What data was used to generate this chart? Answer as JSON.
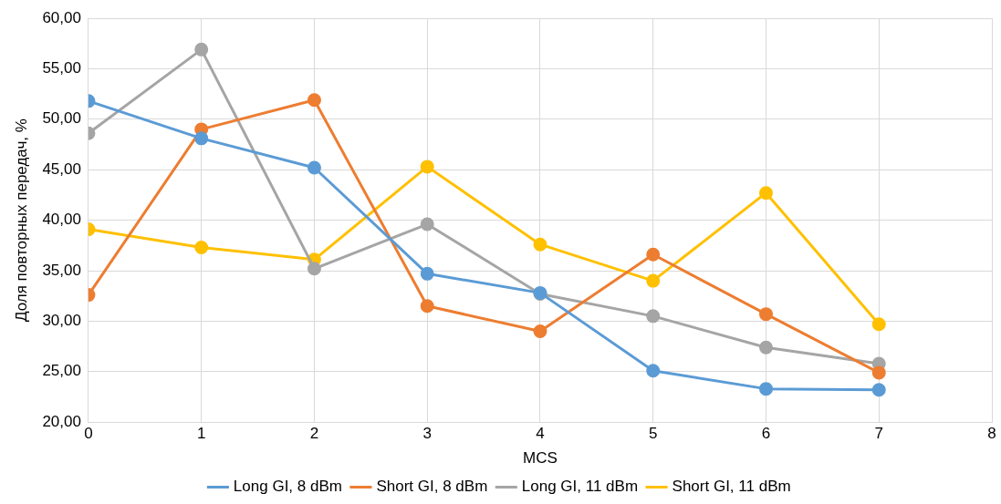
{
  "chart_data": {
    "type": "line",
    "xlabel": "MCS",
    "ylabel": "Доля повторных передач, %",
    "x": [
      0,
      1,
      2,
      3,
      4,
      5,
      6,
      7
    ],
    "xlim": [
      0,
      8
    ],
    "xticks": [
      0,
      1,
      2,
      3,
      4,
      5,
      6,
      7,
      8
    ],
    "ylim": [
      20,
      60
    ],
    "yticks": [
      {
        "value": 20,
        "label": "20,00"
      },
      {
        "value": 25,
        "label": "25,00"
      },
      {
        "value": 30,
        "label": "30,00"
      },
      {
        "value": 35,
        "label": "35,00"
      },
      {
        "value": 40,
        "label": "40,00"
      },
      {
        "value": 45,
        "label": "45,00"
      },
      {
        "value": 50,
        "label": "50,00"
      },
      {
        "value": 55,
        "label": "55,00"
      },
      {
        "value": 60,
        "label": "60,00"
      }
    ],
    "grid": true,
    "legend": "bottom",
    "marker": "circle",
    "line_style": "solid",
    "series": [
      {
        "name": "Long GI, 8 dBm",
        "color": "#5b9bd5",
        "values": [
          51.8,
          48.1,
          45.2,
          34.7,
          32.8,
          25.1,
          23.3,
          23.2
        ]
      },
      {
        "name": "Short GI, 8 dBm",
        "color": "#ed7d31",
        "values": [
          32.6,
          49.0,
          51.9,
          31.5,
          29.0,
          36.6,
          30.7,
          24.9
        ]
      },
      {
        "name": "Long GI, 11 dBm",
        "color": "#a5a5a5",
        "values": [
          48.6,
          56.9,
          35.2,
          39.6,
          32.7,
          30.5,
          27.4,
          25.8
        ]
      },
      {
        "name": "Short GI, 11 dBm",
        "color": "#ffc000",
        "values": [
          39.1,
          37.3,
          36.1,
          45.3,
          37.6,
          34.0,
          42.7,
          29.7
        ]
      }
    ]
  }
}
